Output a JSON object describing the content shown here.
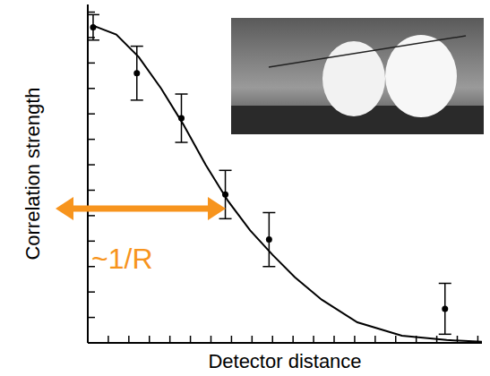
{
  "chart_data": {
    "type": "scatter",
    "x_label": "Detector distance",
    "y_label": "Correlation strength",
    "annotations": [
      {
        "text": "~1/R",
        "color": "#f7941d"
      }
    ],
    "xlim": [
      0,
      19.2
    ],
    "ylim": [
      0,
      13.3
    ],
    "xticks": [
      0,
      1,
      2,
      3,
      4,
      5,
      6,
      7,
      8,
      9,
      10,
      11,
      12,
      13,
      14,
      15,
      16,
      17,
      18,
      19
    ],
    "yticks": [
      0,
      1,
      2,
      3,
      4,
      5,
      6,
      7,
      8,
      9,
      10,
      11,
      12,
      13
    ],
    "tick_labels": false,
    "grid": false,
    "series": [
      {
        "type": "scatter",
        "color": "#000000",
        "marker": "circle",
        "x": [
          0.26,
          2.39,
          4.56,
          6.7,
          8.83,
          17.4
        ],
        "values": [
          12.4,
          10.6,
          8.83,
          5.83,
          4.06,
          1.34
        ],
        "errors": [
          0.5,
          1.06,
          0.95,
          0.95,
          1.06,
          1.0
        ]
      },
      {
        "type": "line",
        "color": "#000000",
        "line_style": "solid",
        "x": [
          0.26,
          1.39,
          2.48,
          3.57,
          4.65,
          5.74,
          6.83,
          7.91,
          9.0,
          10.09,
          11.39,
          13.13,
          15.3,
          17.48,
          19.2
        ],
        "values": [
          12.47,
          12.12,
          11.24,
          10.0,
          8.59,
          7.0,
          5.58,
          4.42,
          3.46,
          2.58,
          1.7,
          0.81,
          0.28,
          0.11,
          0.04
        ]
      }
    ]
  }
}
